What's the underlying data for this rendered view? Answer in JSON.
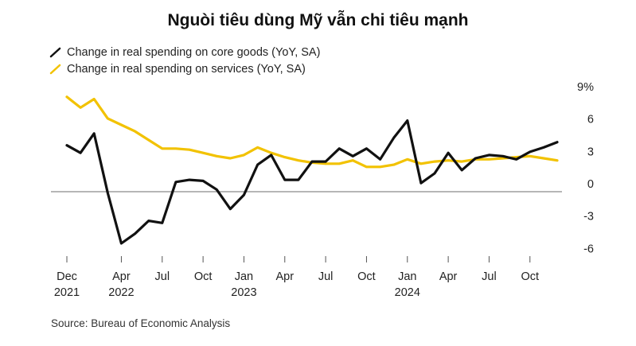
{
  "chart_data": {
    "type": "line",
    "title": "Nguòi tiêu dùng Mỹ vẫn chi tiêu mạnh",
    "source": "Source: Bureau of Economic Analysis",
    "ylim": [
      -6.5,
      9
    ],
    "y_ticks": [
      9,
      6,
      3,
      0,
      -3,
      -6
    ],
    "y_tick_labels": [
      "9%",
      "6",
      "3",
      "0",
      "-3",
      "-6"
    ],
    "x_tick_labels": [
      {
        "index": 0,
        "line1": "Dec",
        "line2": "2021"
      },
      {
        "index": 4,
        "line1": "Apr",
        "line2": "2022"
      },
      {
        "index": 7,
        "line1": "Jul",
        "line2": ""
      },
      {
        "index": 10,
        "line1": "Oct",
        "line2": ""
      },
      {
        "index": 13,
        "line1": "Jan",
        "line2": "2023"
      },
      {
        "index": 16,
        "line1": "Apr",
        "line2": ""
      },
      {
        "index": 19,
        "line1": "Jul",
        "line2": ""
      },
      {
        "index": 22,
        "line1": "Oct",
        "line2": ""
      },
      {
        "index": 25,
        "line1": "Jan",
        "line2": "2024"
      },
      {
        "index": 28,
        "line1": "Apr",
        "line2": ""
      },
      {
        "index": 31,
        "line1": "Jul",
        "line2": ""
      },
      {
        "index": 34,
        "line1": "Oct",
        "line2": ""
      }
    ],
    "categories": [
      "Dec 2021",
      "Jan 2022",
      "Feb 2022",
      "Mar 2022",
      "Apr 2022",
      "May 2022",
      "Jun 2022",
      "Jul 2022",
      "Aug 2022",
      "Sep 2022",
      "Oct 2022",
      "Nov 2022",
      "Dec 2022",
      "Jan 2023",
      "Feb 2023",
      "Mar 2023",
      "Apr 2023",
      "May 2023",
      "Jun 2023",
      "Jul 2023",
      "Aug 2023",
      "Sep 2023",
      "Oct 2023",
      "Nov 2023",
      "Dec 2023",
      "Jan 2024",
      "Feb 2024",
      "Mar 2024",
      "Apr 2024",
      "May 2024",
      "Jun 2024",
      "Jul 2024",
      "Aug 2024",
      "Sep 2024",
      "Oct 2024",
      "Nov 2024",
      "Dec 2024"
    ],
    "series": [
      {
        "name": "Change in real spending on core goods (YoY, SA)",
        "color": "#111111",
        "values": [
          4.3,
          3.6,
          5.4,
          -0.1,
          -4.8,
          -3.9,
          -2.7,
          -2.9,
          0.9,
          1.1,
          1.0,
          0.2,
          -1.6,
          -0.3,
          2.5,
          3.4,
          1.1,
          1.1,
          2.8,
          2.8,
          4.0,
          3.3,
          4.0,
          3.0,
          5.0,
          6.6,
          0.8,
          1.7,
          3.6,
          2.0,
          3.1,
          3.4,
          3.3,
          3.0,
          3.7,
          4.1,
          4.6
        ]
      },
      {
        "name": "Change in real spending on services (YoY, SA)",
        "color": "#f2c200",
        "values": [
          8.8,
          7.8,
          8.6,
          6.8,
          6.2,
          5.6,
          4.8,
          4.0,
          4.0,
          3.9,
          3.6,
          3.3,
          3.1,
          3.4,
          4.1,
          3.6,
          3.2,
          2.9,
          2.7,
          2.6,
          2.6,
          2.9,
          2.3,
          2.3,
          2.5,
          3.0,
          2.6,
          2.8,
          2.9,
          2.8,
          3.0,
          3.0,
          3.1,
          3.2,
          3.3,
          3.1,
          2.9
        ]
      }
    ],
    "grid": false,
    "legend_placement": "top-left"
  }
}
